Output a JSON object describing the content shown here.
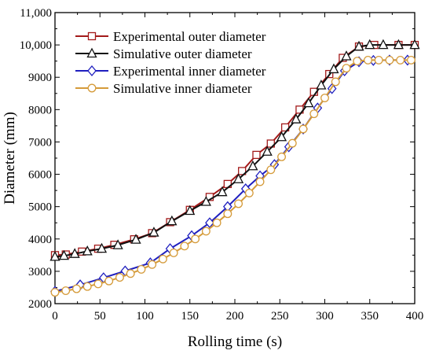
{
  "chart_data": {
    "type": "line",
    "title": "",
    "xlabel": "Rolling time (s)",
    "ylabel": "Diameter (mm)",
    "xlim": [
      0,
      400
    ],
    "ylim": [
      2000,
      11000
    ],
    "x_ticks": [
      0,
      50,
      100,
      150,
      200,
      250,
      300,
      350,
      400
    ],
    "y_ticks": [
      2000,
      3000,
      4000,
      5000,
      6000,
      7000,
      8000,
      9000,
      10000,
      11000
    ],
    "x_tick_labels": [
      "0",
      "50",
      "100",
      "150",
      "200",
      "250",
      "300",
      "350",
      "400"
    ],
    "y_tick_labels": [
      "2000",
      "3000",
      "4000",
      "5000",
      "6000",
      "7000",
      "8000",
      "9000",
      "10,000",
      "11,000"
    ],
    "grid": false,
    "legend_position": "top-left",
    "series": [
      {
        "name": "Experimental outer diameter",
        "color": "#a31a1a",
        "marker": "square",
        "x": [
          0,
          12,
          30,
          48,
          66,
          88,
          108,
          128,
          150,
          172,
          192,
          208,
          224,
          240,
          256,
          272,
          288,
          305,
          320,
          338,
          355,
          382,
          400
        ],
        "y": [
          3500,
          3520,
          3610,
          3700,
          3820,
          3990,
          4180,
          4520,
          4900,
          5300,
          5700,
          6100,
          6600,
          6950,
          7450,
          8000,
          8550,
          9100,
          9600,
          9950,
          10000,
          10000,
          10000
        ]
      },
      {
        "name": "Simulative outer diameter",
        "color": "#111111",
        "marker": "triangle",
        "x": [
          0,
          10,
          22,
          36,
          52,
          70,
          90,
          110,
          130,
          150,
          168,
          186,
          204,
          220,
          236,
          252,
          268,
          282,
          296,
          310,
          324,
          338,
          350,
          365,
          382,
          400
        ],
        "y": [
          3450,
          3480,
          3540,
          3620,
          3700,
          3810,
          3980,
          4200,
          4550,
          4870,
          5150,
          5450,
          5850,
          6250,
          6700,
          7150,
          7700,
          8200,
          8750,
          9250,
          9650,
          9950,
          10000,
          10000,
          10000,
          10000
        ]
      },
      {
        "name": "Experimental inner diameter",
        "color": "#1f1fbf",
        "marker": "diamond",
        "x": [
          0,
          28,
          54,
          78,
          106,
          128,
          152,
          172,
          192,
          212,
          228,
          244,
          260,
          276,
          292,
          308,
          322,
          338,
          354,
          372,
          392
        ],
        "y": [
          2380,
          2580,
          2800,
          3010,
          3260,
          3700,
          4100,
          4500,
          5000,
          5550,
          5950,
          6300,
          6850,
          7400,
          8050,
          8650,
          9200,
          9480,
          9520,
          9530,
          9530
        ]
      },
      {
        "name": "Simulative inner diameter",
        "color": "#d59b3a",
        "marker": "circle",
        "x": [
          0,
          12,
          24,
          36,
          48,
          60,
          72,
          84,
          96,
          108,
          120,
          132,
          144,
          156,
          168,
          180,
          192,
          204,
          216,
          228,
          240,
          252,
          264,
          276,
          288,
          300,
          312,
          324,
          336,
          348,
          360,
          372,
          384,
          396
        ],
        "y": [
          2350,
          2400,
          2460,
          2530,
          2610,
          2700,
          2810,
          2930,
          3060,
          3210,
          3380,
          3570,
          3780,
          4000,
          4240,
          4500,
          4780,
          5090,
          5420,
          5770,
          6140,
          6540,
          6960,
          7400,
          7870,
          8360,
          8860,
          9280,
          9500,
          9530,
          9530,
          9530,
          9530,
          9530
        ]
      }
    ]
  }
}
